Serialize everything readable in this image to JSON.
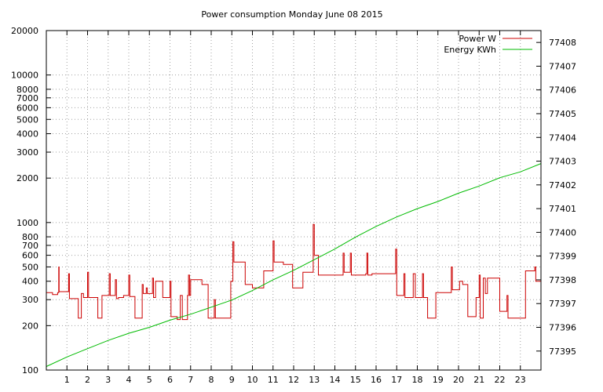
{
  "chart_data": {
    "type": "line",
    "title": "Power consumption Monday June 08 2015",
    "xlabel": "",
    "ylabel": "",
    "y2label": "",
    "grid": true,
    "legend_position": "top-right",
    "x_range": [
      0,
      24
    ],
    "x_ticks": [
      1,
      2,
      3,
      4,
      5,
      6,
      7,
      8,
      9,
      10,
      11,
      12,
      13,
      14,
      15,
      16,
      17,
      18,
      19,
      20,
      21,
      22,
      23
    ],
    "y_scale": "log",
    "y_range": [
      100,
      20000
    ],
    "y_ticks": [
      100,
      200,
      300,
      400,
      500,
      600,
      700,
      800,
      1000,
      2000,
      3000,
      4000,
      5000,
      6000,
      7000,
      8000,
      10000,
      20000
    ],
    "y2_range": [
      77394.2,
      77408.5
    ],
    "y2_ticks": [
      77395,
      77396,
      77397,
      77398,
      77399,
      77400,
      77401,
      77402,
      77403,
      77404,
      77405,
      77406,
      77407,
      77408
    ],
    "series": [
      {
        "name": "Power W",
        "color": "#cc0000",
        "axis": "y",
        "step": true,
        "points": [
          [
            0.0,
            335
          ],
          [
            0.3,
            325
          ],
          [
            0.55,
            335
          ],
          [
            0.6,
            500
          ],
          [
            0.62,
            340
          ],
          [
            1.0,
            340
          ],
          [
            1.08,
            450
          ],
          [
            1.12,
            305
          ],
          [
            1.5,
            305
          ],
          [
            1.55,
            225
          ],
          [
            1.7,
            330
          ],
          [
            1.8,
            310
          ],
          [
            1.95,
            310
          ],
          [
            2.0,
            460
          ],
          [
            2.05,
            310
          ],
          [
            2.45,
            310
          ],
          [
            2.5,
            225
          ],
          [
            2.7,
            320
          ],
          [
            3.0,
            320
          ],
          [
            3.05,
            450
          ],
          [
            3.1,
            320
          ],
          [
            3.3,
            320
          ],
          [
            3.35,
            410
          ],
          [
            3.4,
            305
          ],
          [
            3.5,
            310
          ],
          [
            3.7,
            310
          ],
          [
            3.75,
            320
          ],
          [
            3.95,
            320
          ],
          [
            4.0,
            440
          ],
          [
            4.05,
            315
          ],
          [
            4.25,
            315
          ],
          [
            4.3,
            225
          ],
          [
            4.6,
            225
          ],
          [
            4.65,
            380
          ],
          [
            4.7,
            330
          ],
          [
            4.8,
            330
          ],
          [
            4.85,
            360
          ],
          [
            4.9,
            330
          ],
          [
            5.1,
            330
          ],
          [
            5.15,
            420
          ],
          [
            5.2,
            310
          ],
          [
            5.3,
            400
          ],
          [
            5.6,
            400
          ],
          [
            5.65,
            310
          ],
          [
            5.95,
            310
          ],
          [
            6.0,
            400
          ],
          [
            6.05,
            230
          ],
          [
            6.3,
            230
          ],
          [
            6.35,
            220
          ],
          [
            6.5,
            320
          ],
          [
            6.6,
            220
          ],
          [
            6.8,
            220
          ],
          [
            6.85,
            320
          ],
          [
            6.9,
            440
          ],
          [
            6.95,
            320
          ],
          [
            7.0,
            410
          ],
          [
            7.5,
            410
          ],
          [
            7.55,
            380
          ],
          [
            7.8,
            380
          ],
          [
            7.85,
            225
          ],
          [
            8.1,
            225
          ],
          [
            8.15,
            300
          ],
          [
            8.2,
            225
          ],
          [
            8.9,
            225
          ],
          [
            8.95,
            400
          ],
          [
            9.0,
            400
          ],
          [
            9.05,
            740
          ],
          [
            9.1,
            540
          ],
          [
            9.6,
            540
          ],
          [
            9.65,
            380
          ],
          [
            9.95,
            380
          ],
          [
            10.0,
            360
          ],
          [
            10.5,
            360
          ],
          [
            10.55,
            470
          ],
          [
            10.95,
            470
          ],
          [
            11.0,
            750
          ],
          [
            11.05,
            540
          ],
          [
            11.5,
            520
          ],
          [
            11.9,
            520
          ],
          [
            11.95,
            360
          ],
          [
            12.4,
            360
          ],
          [
            12.45,
            460
          ],
          [
            12.9,
            460
          ],
          [
            12.95,
            970
          ],
          [
            13.0,
            600
          ],
          [
            13.1,
            600
          ],
          [
            13.2,
            440
          ],
          [
            14.35,
            440
          ],
          [
            14.4,
            620
          ],
          [
            14.45,
            460
          ],
          [
            14.7,
            460
          ],
          [
            14.75,
            620
          ],
          [
            14.8,
            440
          ],
          [
            15.5,
            450
          ],
          [
            15.55,
            620
          ],
          [
            15.6,
            440
          ],
          [
            15.75,
            440
          ],
          [
            15.8,
            450
          ],
          [
            16.9,
            450
          ],
          [
            16.95,
            660
          ],
          [
            17.0,
            320
          ],
          [
            17.3,
            320
          ],
          [
            17.35,
            450
          ],
          [
            17.4,
            310
          ],
          [
            17.75,
            310
          ],
          [
            17.8,
            450
          ],
          [
            17.9,
            310
          ],
          [
            18.2,
            310
          ],
          [
            18.25,
            450
          ],
          [
            18.3,
            310
          ],
          [
            18.45,
            310
          ],
          [
            18.5,
            225
          ],
          [
            18.85,
            225
          ],
          [
            18.9,
            335
          ],
          [
            19.6,
            335
          ],
          [
            19.65,
            500
          ],
          [
            19.7,
            350
          ],
          [
            20.0,
            350
          ],
          [
            20.05,
            400
          ],
          [
            20.2,
            380
          ],
          [
            20.4,
            380
          ],
          [
            20.45,
            230
          ],
          [
            20.8,
            230
          ],
          [
            20.85,
            310
          ],
          [
            20.95,
            310
          ],
          [
            21.0,
            440
          ],
          [
            21.05,
            225
          ],
          [
            21.15,
            225
          ],
          [
            21.2,
            420
          ],
          [
            21.3,
            330
          ],
          [
            21.4,
            420
          ],
          [
            21.95,
            420
          ],
          [
            22.0,
            250
          ],
          [
            22.3,
            250
          ],
          [
            22.35,
            320
          ],
          [
            22.4,
            225
          ],
          [
            23.2,
            225
          ],
          [
            23.25,
            470
          ],
          [
            23.65,
            470
          ],
          [
            23.7,
            500
          ],
          [
            23.75,
            400
          ],
          [
            23.95,
            400
          ],
          [
            24.0,
            290
          ]
        ]
      },
      {
        "name": "Energy KWh",
        "color": "#00bb00",
        "axis": "y2",
        "step": false,
        "points": [
          [
            0,
            77394.35
          ],
          [
            1,
            77394.75
          ],
          [
            2,
            77395.1
          ],
          [
            3,
            77395.45
          ],
          [
            4,
            77395.75
          ],
          [
            5,
            77396.0
          ],
          [
            6,
            77396.3
          ],
          [
            7,
            77396.55
          ],
          [
            8,
            77396.85
          ],
          [
            9,
            77397.15
          ],
          [
            10,
            77397.55
          ],
          [
            11,
            77398.0
          ],
          [
            12,
            77398.4
          ],
          [
            13,
            77398.85
          ],
          [
            14,
            77399.3
          ],
          [
            15,
            77399.8
          ],
          [
            16,
            77400.25
          ],
          [
            17,
            77400.65
          ],
          [
            18,
            77401.0
          ],
          [
            19,
            77401.3
          ],
          [
            20,
            77401.65
          ],
          [
            21,
            77401.95
          ],
          [
            22,
            77402.3
          ],
          [
            23,
            77402.55
          ],
          [
            24,
            77402.9
          ]
        ]
      }
    ]
  }
}
